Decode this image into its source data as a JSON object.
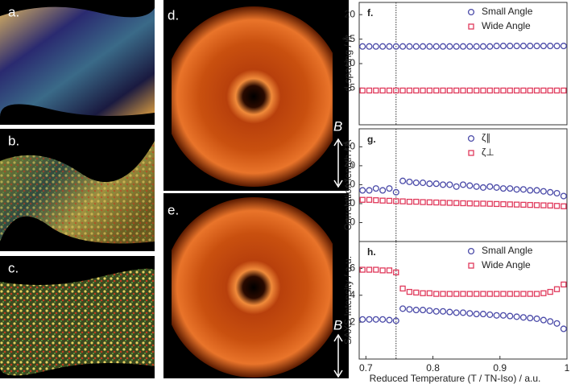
{
  "panels": [
    {
      "label": "a."
    },
    {
      "label": "b."
    },
    {
      "label": "c."
    },
    {
      "label": "d.",
      "field": "B"
    },
    {
      "label": "e.",
      "field": "B"
    }
  ],
  "chart_data": [
    {
      "type": "scatter",
      "label": "f.",
      "y_label": "d-spacing / Å",
      "xlim": [
        0.69,
        1.0
      ],
      "ylim": [
        -2.5,
        22.5
      ],
      "yticks": [
        5,
        10,
        15,
        20
      ],
      "marker_x": 0.745,
      "x": [
        0.695,
        0.705,
        0.715,
        0.725,
        0.735,
        0.745,
        0.755,
        0.765,
        0.775,
        0.785,
        0.795,
        0.805,
        0.815,
        0.825,
        0.835,
        0.845,
        0.855,
        0.865,
        0.875,
        0.885,
        0.895,
        0.905,
        0.915,
        0.925,
        0.935,
        0.945,
        0.955,
        0.965,
        0.975,
        0.985,
        0.995
      ],
      "series": [
        {
          "name": "Small Angle",
          "color": "#4a4aa8",
          "marker": "circle",
          "values": [
            13.5,
            13.5,
            13.5,
            13.5,
            13.5,
            13.5,
            13.5,
            13.5,
            13.5,
            13.5,
            13.5,
            13.5,
            13.5,
            13.5,
            13.5,
            13.5,
            13.5,
            13.5,
            13.5,
            13.5,
            13.6,
            13.6,
            13.6,
            13.6,
            13.6,
            13.6,
            13.6,
            13.6,
            13.6,
            13.6,
            13.6
          ]
        },
        {
          "name": "Wide Angle",
          "color": "#e03a5c",
          "marker": "square",
          "values": [
            4.5,
            4.5,
            4.5,
            4.5,
            4.5,
            4.5,
            4.5,
            4.5,
            4.5,
            4.5,
            4.5,
            4.5,
            4.5,
            4.5,
            4.5,
            4.5,
            4.5,
            4.5,
            4.5,
            4.5,
            4.5,
            4.5,
            4.5,
            4.5,
            4.5,
            4.5,
            4.5,
            4.5,
            4.5,
            4.5,
            4.5
          ]
        }
      ]
    },
    {
      "type": "scatter",
      "label": "g.",
      "y_label": "Correlation length  / Å",
      "xlim": [
        0.69,
        1.0
      ],
      "ylim": [
        0,
        59.5
      ],
      "yticks": [
        10,
        20,
        30,
        40,
        50
      ],
      "marker_x": 0.745,
      "x": [
        0.695,
        0.705,
        0.715,
        0.725,
        0.735,
        0.745,
        0.755,
        0.765,
        0.775,
        0.785,
        0.795,
        0.805,
        0.815,
        0.825,
        0.835,
        0.845,
        0.855,
        0.865,
        0.875,
        0.885,
        0.895,
        0.905,
        0.915,
        0.925,
        0.935,
        0.945,
        0.955,
        0.965,
        0.975,
        0.985,
        0.995
      ],
      "series": [
        {
          "name": "ζ∥",
          "color": "#4a4aa8",
          "marker": "circle",
          "values": [
            27,
            27,
            28,
            27,
            28,
            26,
            32,
            31.5,
            31,
            31,
            30.5,
            30.5,
            30,
            30,
            29,
            30,
            29.5,
            29,
            28.5,
            29,
            28.5,
            28,
            28,
            27.5,
            27.5,
            27,
            27,
            26.5,
            26,
            25.5,
            24
          ]
        },
        {
          "name": "ζ⊥",
          "color": "#e03a5c",
          "marker": "square",
          "values": [
            22,
            22,
            21.8,
            21.6,
            21.5,
            21.3,
            21.2,
            21,
            21,
            20.8,
            20.7,
            20.6,
            20.5,
            20.4,
            20.3,
            20.2,
            20.1,
            20,
            20,
            19.9,
            19.8,
            19.7,
            19.6,
            19.5,
            19.4,
            19.3,
            19.2,
            19.1,
            19,
            18.8,
            18.6
          ]
        }
      ]
    },
    {
      "type": "scatter",
      "label": "h.",
      "y_label": "SAXS Intensity / a.u.",
      "x_label": "Reduced Temperature (T / TN-Iso) / a.u.",
      "xlim": [
        0.69,
        1.0
      ],
      "ylim": [
        -0.75,
        8
      ],
      "xticks": [
        0.7,
        0.8,
        0.9,
        1
      ],
      "yticks": [
        2,
        4,
        6
      ],
      "marker_x": 0.745,
      "x": [
        0.695,
        0.705,
        0.715,
        0.725,
        0.735,
        0.745,
        0.755,
        0.765,
        0.775,
        0.785,
        0.795,
        0.805,
        0.815,
        0.825,
        0.835,
        0.845,
        0.855,
        0.865,
        0.875,
        0.885,
        0.895,
        0.905,
        0.915,
        0.925,
        0.935,
        0.945,
        0.955,
        0.965,
        0.975,
        0.985,
        0.995
      ],
      "series": [
        {
          "name": "Small Angle",
          "color": "#4a4aa8",
          "marker": "circle",
          "values": [
            2.2,
            2.2,
            2.2,
            2.2,
            2.15,
            2.1,
            3.0,
            2.95,
            2.9,
            2.9,
            2.85,
            2.8,
            2.8,
            2.75,
            2.7,
            2.7,
            2.65,
            2.6,
            2.6,
            2.55,
            2.5,
            2.5,
            2.45,
            2.4,
            2.35,
            2.3,
            2.25,
            2.15,
            2.05,
            1.9,
            1.5
          ]
        },
        {
          "name": "Wide Angle",
          "color": "#e03a5c",
          "marker": "square",
          "values": [
            5.9,
            5.9,
            5.9,
            5.85,
            5.85,
            5.7,
            4.5,
            4.25,
            4.2,
            4.15,
            4.15,
            4.1,
            4.1,
            4.1,
            4.1,
            4.1,
            4.1,
            4.1,
            4.1,
            4.1,
            4.1,
            4.1,
            4.1,
            4.1,
            4.1,
            4.1,
            4.1,
            4.15,
            4.25,
            4.45,
            4.8
          ]
        }
      ]
    }
  ]
}
